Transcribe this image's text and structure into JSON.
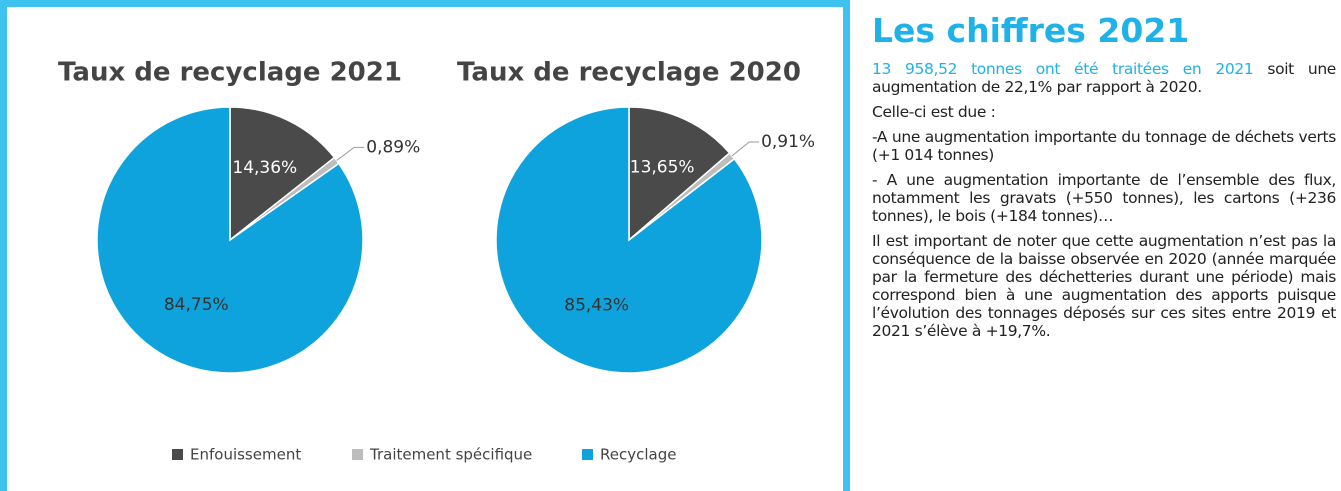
{
  "chart_data": [
    {
      "type": "pie",
      "title": "Taux de recyclage 2021",
      "values": [
        14.36,
        0.89,
        84.75
      ],
      "value_labels": [
        "14,36%",
        "0,89%",
        "84,75%"
      ]
    },
    {
      "type": "pie",
      "title": "Taux de recyclage 2020",
      "values": [
        13.65,
        0.91,
        85.43
      ],
      "value_labels": [
        "13,65%",
        "0,91%",
        "85,43%"
      ]
    }
  ],
  "legend": [
    {
      "name": "Enfouissement",
      "color": "#4a4a4a"
    },
    {
      "name": "Traitement spécifique",
      "color": "#bdbdbd"
    },
    {
      "name": "Recyclage",
      "color": "#0ea3dc"
    }
  ],
  "aside": {
    "title": "Les chiffres 2021",
    "lead_highlight": "13 958,52 tonnes ont été traitées en 2021",
    "lead_rest": " soit une augmentation de 22,1% par rapport à 2020.",
    "paragraphs": [
      "Celle-ci est due :",
      "-A une augmentation importante du tonnage de déchets verts (+1 014 tonnes)",
      "- A une augmentation importante de l’ensemble des flux, notamment les gravats (+550 tonnes), les cartons (+236 tonnes), le bois (+184 tonnes)…",
      "Il est important de noter que cette augmentation n’est pas la conséquence de la baisse observée en 2020 (année marquée par la fermeture des déchetteries durant une période) mais correspond bien à une augmentation des apports puisque l’évolution des tonnages déposés sur ces sites entre 2019 et 2021 s’élève à +19,7%."
    ]
  }
}
